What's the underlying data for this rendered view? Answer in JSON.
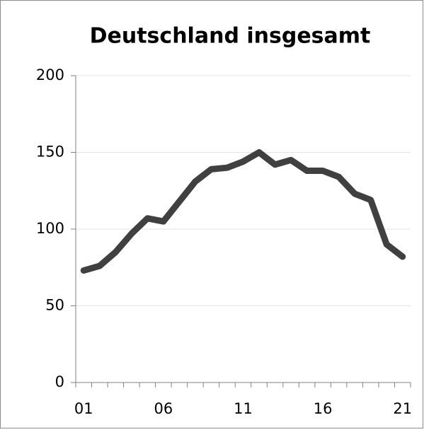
{
  "chart_data": {
    "type": "line",
    "title": "Deutschland insgesamt",
    "categories": [
      "01",
      null,
      null,
      null,
      null,
      "06",
      null,
      null,
      null,
      null,
      "11",
      null,
      null,
      null,
      null,
      "16",
      null,
      null,
      null,
      null,
      "21"
    ],
    "series": [
      {
        "color": "#404040",
        "values": [
          73,
          76,
          85,
          97,
          107,
          105,
          118,
          131,
          139,
          140,
          144,
          150,
          142,
          145,
          138,
          138,
          134,
          123,
          119,
          90,
          82
        ]
      }
    ],
    "ylim": [
      0,
      200
    ],
    "yticks": [
      0,
      50,
      100,
      150,
      200
    ],
    "grid": true
  }
}
